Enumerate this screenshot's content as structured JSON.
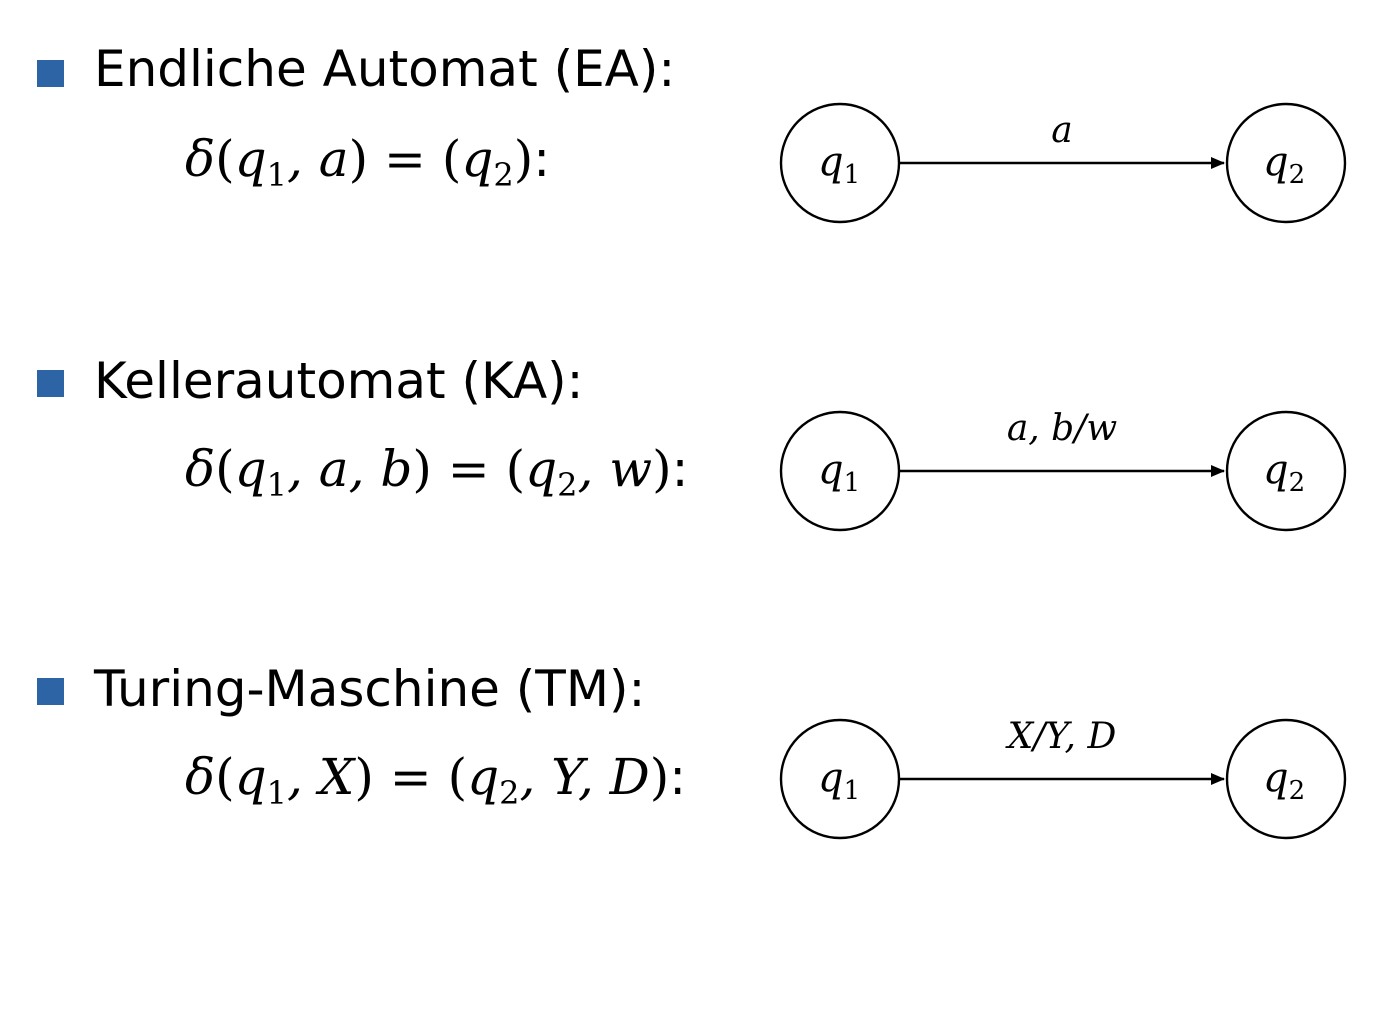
{
  "accent_color": "#2c64a6",
  "sections": [
    {
      "heading": "Endliche Automat (EA):",
      "formula": {
        "delta": "δ",
        "open": "(",
        "args": "q",
        "args_sub": "1",
        "args_rest": ", a",
        "close": ")",
        "equals": " = ",
        "result_open": "(",
        "result": "q",
        "result_sub": "2",
        "result_rest": "",
        "result_close": ")",
        "colon": ":"
      },
      "diagram": {
        "from_state": "q",
        "from_sub": "1",
        "to_state": "q",
        "to_sub": "2",
        "edge_label": "a"
      }
    },
    {
      "heading": "Kellerautomat (KA):",
      "formula": {
        "delta": "δ",
        "open": "(",
        "args": "q",
        "args_sub": "1",
        "args_rest": ", a, b",
        "close": ")",
        "equals": " = ",
        "result_open": "(",
        "result": "q",
        "result_sub": "2",
        "result_rest": ", w",
        "result_close": ")",
        "colon": ":"
      },
      "diagram": {
        "from_state": "q",
        "from_sub": "1",
        "to_state": "q",
        "to_sub": "2",
        "edge_label": "a, b/w"
      }
    },
    {
      "heading": "Turing-Maschine (TM):",
      "formula": {
        "delta": "δ",
        "open": "(",
        "args": "q",
        "args_sub": "1",
        "args_rest": ", X",
        "close": ")",
        "equals": " = ",
        "result_open": "(",
        "result": "q",
        "result_sub": "2",
        "result_rest": ", Y, D",
        "result_close": ")",
        "colon": ":"
      },
      "diagram": {
        "from_state": "q",
        "from_sub": "1",
        "to_state": "q",
        "to_sub": "2",
        "edge_label": "X/Y, D"
      }
    }
  ]
}
